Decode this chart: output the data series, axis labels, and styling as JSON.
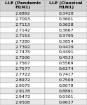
{
  "col_headers": [
    "LLE (Pandemic\nH1N1)",
    "LLE (Classical\nH1N1)"
  ],
  "rows": [
    [
      "2.6892",
      "0.3428"
    ],
    [
      "2.7093",
      "0.3601"
    ],
    [
      "2.7113",
      "0.3628"
    ],
    [
      "2.7142",
      "0.3667"
    ],
    [
      "2.7153",
      "0.3795"
    ],
    [
      "2.7280",
      "0.3854"
    ],
    [
      "2.7392",
      "0.4429"
    ],
    [
      "2.7475",
      "0.4491"
    ],
    [
      "2.7506",
      "0.4533"
    ],
    [
      "2.7567",
      "0.5569"
    ],
    [
      "2.7577",
      "0.6274"
    ],
    [
      "2.7722",
      "0.7417"
    ],
    [
      "2.8972",
      "0.7509"
    ],
    [
      "2.9075",
      "0.8078"
    ],
    [
      "2.9178",
      "0.8891"
    ],
    [
      "2.9472",
      "0.9301"
    ],
    [
      "2.9508",
      "0.9637"
    ]
  ],
  "header_bg": "#d0d0d0",
  "row_bg_odd": "#e8e8e8",
  "row_bg_even": "#ffffff",
  "font_size": 4.5,
  "header_font_size": 4.5,
  "fig_width": 1.24,
  "fig_height": 1.5,
  "fig_dpi": 100
}
